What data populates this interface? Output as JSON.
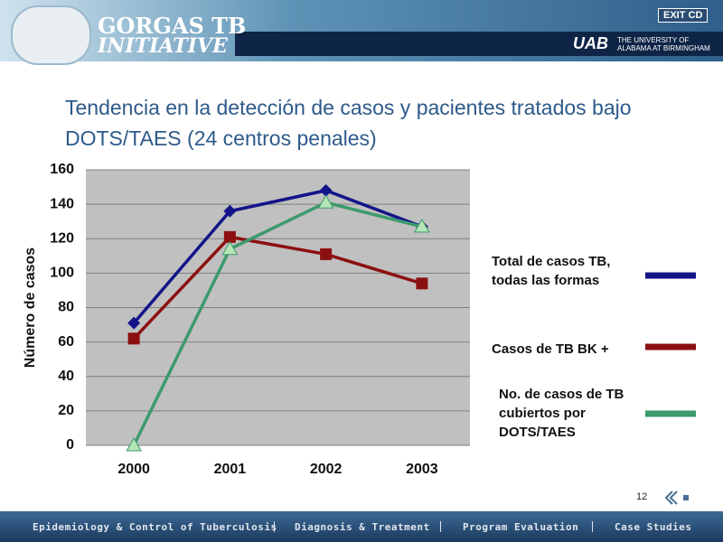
{
  "header": {
    "logo_line1": "GORGAS TB",
    "logo_line2": "INITIATIVE",
    "exit_button": "EXIT CD",
    "uab_logo": "UAB",
    "university_line1": "THE UNIVERSITY OF",
    "university_line2": "ALABAMA AT BIRMINGHAM"
  },
  "chart_data": {
    "type": "line",
    "title": "Tendencia en la detección de casos y pacientes tratados bajo DOTS/TAES  (24 centros penales)",
    "y_label": "Número de casos",
    "categories": [
      "2000",
      "2001",
      "2002",
      "2003"
    ],
    "series": [
      {
        "name": "Total de casos TB, todas las formas",
        "color": "#14148a",
        "marker": "diamond",
        "values": [
          71,
          136,
          148,
          127
        ]
      },
      {
        "name": "Casos de TB BK +",
        "color": "#8c1010",
        "marker": "square",
        "values": [
          62,
          121,
          111,
          94
        ]
      },
      {
        "name": "No. de casos de TB cubiertos por DOTS/TAES",
        "color": "#3c9a6c",
        "marker": "triangle",
        "values": [
          0,
          114,
          141,
          127
        ]
      }
    ],
    "ylim": [
      0,
      160
    ],
    "yticks": [
      0,
      20,
      40,
      60,
      80,
      100,
      120,
      140,
      160
    ],
    "grid": true
  },
  "page_number": "12",
  "footer": {
    "links": [
      "Epidemiology & Control of Tuberculosis",
      "Diagnosis & Treatment",
      "Program Evaluation",
      "Case Studies"
    ]
  }
}
